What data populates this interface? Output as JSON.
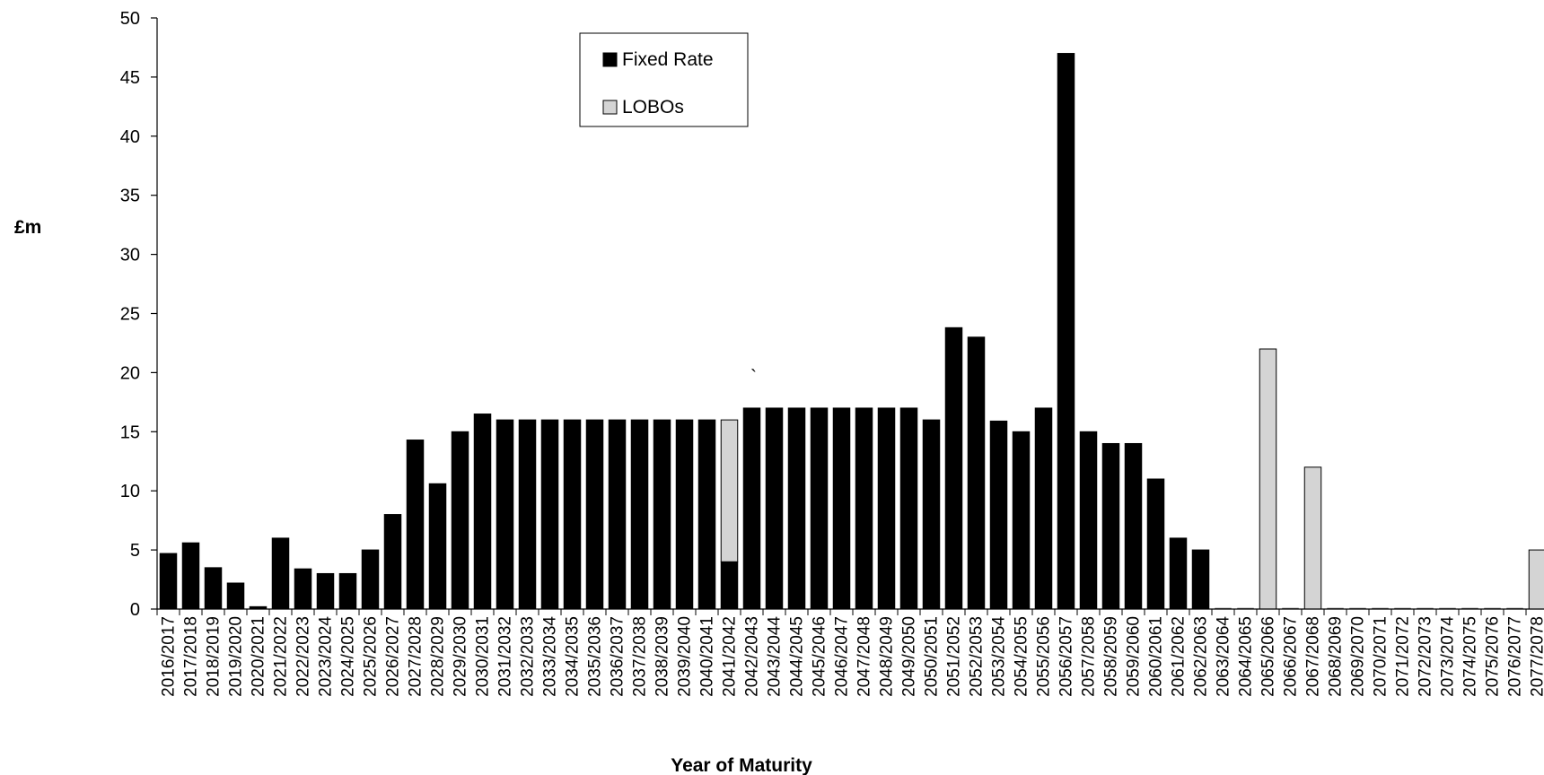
{
  "chart_data": {
    "type": "bar",
    "stacked": true,
    "title": "",
    "xlabel": "Year of Maturity",
    "ylabel": "£m",
    "ylim": [
      0,
      50
    ],
    "yticks": [
      0,
      5,
      10,
      15,
      20,
      25,
      30,
      35,
      40,
      45,
      50
    ],
    "grid": false,
    "legend_position": "top-center",
    "categories": [
      "2016/2017",
      "2017/2018",
      "2018/2019",
      "2019/2020",
      "2020/2021",
      "2021/2022",
      "2022/2023",
      "2023/2024",
      "2024/2025",
      "2025/2026",
      "2026/2027",
      "2027/2028",
      "2028/2029",
      "2029/2030",
      "2030/2031",
      "2031/2032",
      "2032/2033",
      "2033/2034",
      "2034/2035",
      "2035/2036",
      "2036/2037",
      "2037/2038",
      "2038/2039",
      "2039/2040",
      "2040/2041",
      "2041/2042",
      "2042/2043",
      "2043/2044",
      "2044/2045",
      "2045/2046",
      "2046/2047",
      "2047/2048",
      "2048/2049",
      "2049/2050",
      "2050/2051",
      "2051/2052",
      "2052/2053",
      "2053/2054",
      "2054/2055",
      "2055/2056",
      "2056/2057",
      "2057/2058",
      "2058/2059",
      "2059/2060",
      "2060/2061",
      "2061/2062",
      "2062/2063",
      "2063/2064",
      "2064/2065",
      "2065/2066",
      "2066/2067",
      "2067/2068",
      "2068/2069",
      "2069/2070",
      "2070/2071",
      "2071/2072",
      "2072/2073",
      "2073/2074",
      "2074/2075",
      "2075/2076",
      "2076/2077",
      "2077/2078"
    ],
    "series": [
      {
        "name": "Fixed Rate",
        "color": "#000000",
        "values": [
          4.7,
          5.6,
          3.5,
          2.2,
          0.2,
          6.0,
          3.4,
          3.0,
          3.0,
          5.0,
          8.0,
          14.3,
          10.6,
          15.0,
          16.5,
          16.0,
          16.0,
          16.0,
          16.0,
          16.0,
          16.0,
          16.0,
          16.0,
          16.0,
          16.0,
          4.0,
          17.0,
          17.0,
          17.0,
          17.0,
          17.0,
          17.0,
          17.0,
          17.0,
          16.0,
          23.8,
          23.0,
          15.9,
          15.0,
          17.0,
          47.0,
          15.0,
          14.0,
          14.0,
          11.0,
          6.0,
          5.0,
          0,
          0,
          0,
          0,
          0,
          0,
          0,
          0,
          0,
          0,
          0,
          0,
          0,
          0,
          0
        ]
      },
      {
        "name": "LOBOs",
        "color": "#d4d4d4",
        "values": [
          0,
          0,
          0,
          0,
          0,
          0,
          0,
          0,
          0,
          0,
          0,
          0,
          0,
          0,
          0,
          0,
          0,
          0,
          0,
          0,
          0,
          0,
          0,
          0,
          0,
          12.0,
          0,
          0,
          0,
          0,
          0,
          0,
          0,
          0,
          0,
          0,
          0,
          0,
          0,
          0,
          0,
          0,
          0,
          0,
          0,
          0,
          0,
          0,
          0,
          22.0,
          0,
          12.0,
          0,
          0,
          0,
          0,
          0,
          0,
          0,
          0,
          0,
          5.0
        ]
      }
    ],
    "annotations": [
      "`"
    ]
  }
}
